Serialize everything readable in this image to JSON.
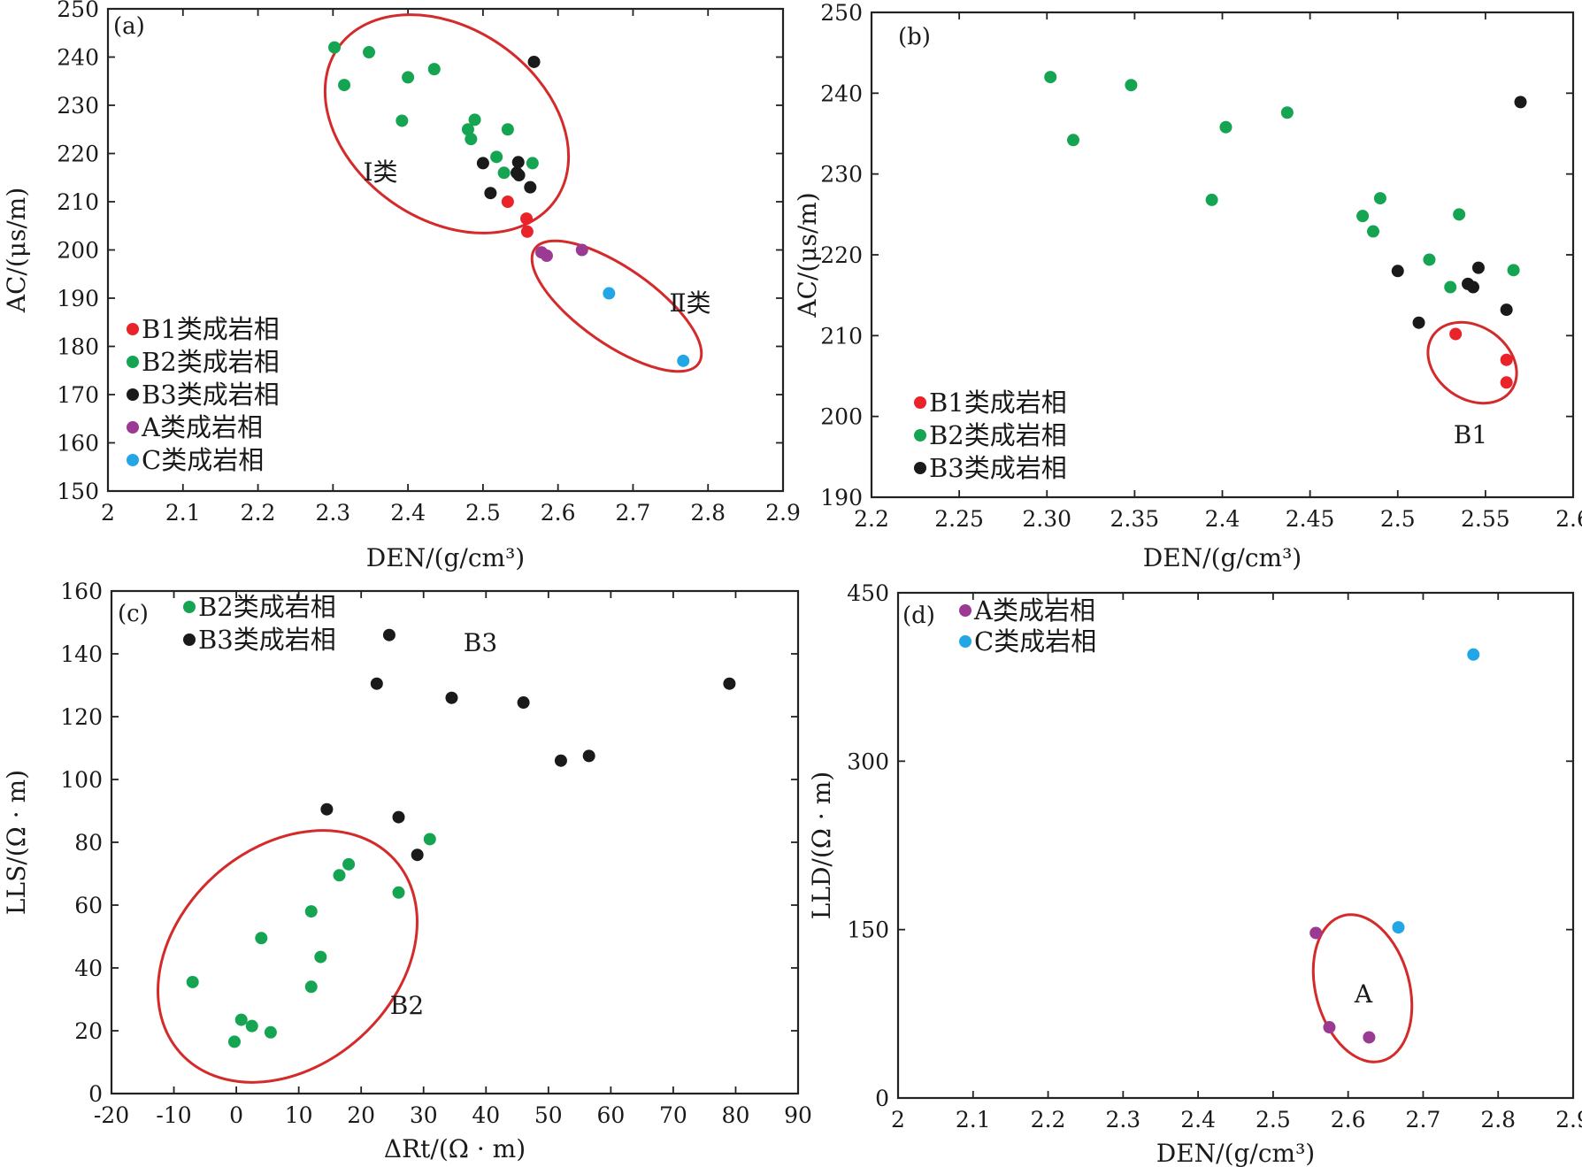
{
  "colors": {
    "B1": "#ea2229",
    "B2": "#15a552",
    "B3": "#1a1a1a",
    "A": "#9a3a93",
    "C": "#22a6e6",
    "ellipse": "#d42a2a"
  },
  "chart_data": [
    {
      "id": "a",
      "type": "scatter",
      "panel_label": "(a)",
      "xlabel": "DEN/(g/cm³)",
      "ylabel": "AC/(μs/m)",
      "xlim": [
        2,
        2.9
      ],
      "ylim": [
        150,
        250
      ],
      "xticks": [
        "2",
        "2.1",
        "2.2",
        "2.3",
        "2.4",
        "2.5",
        "2.6",
        "2.7",
        "2.8",
        "2.9"
      ],
      "yticks": [
        "150",
        "160",
        "170",
        "180",
        "190",
        "200",
        "210",
        "220",
        "230",
        "240",
        "250"
      ],
      "legend_position": "bottom-left",
      "series": [
        {
          "key": "B1",
          "name": "B1类成岩相",
          "points": [
            [
              2.533,
              210
            ],
            [
              2.558,
              206.5
            ],
            [
              2.559,
              203.8
            ]
          ]
        },
        {
          "key": "B2",
          "name": "B2类成岩相",
          "points": [
            [
              2.302,
              242
            ],
            [
              2.348,
              241
            ],
            [
              2.315,
              234.2
            ],
            [
              2.4,
              235.8
            ],
            [
              2.435,
              237.5
            ],
            [
              2.392,
              226.8
            ],
            [
              2.48,
              225
            ],
            [
              2.489,
              227
            ],
            [
              2.484,
              223
            ],
            [
              2.533,
              225
            ],
            [
              2.518,
              219.3
            ],
            [
              2.528,
              216
            ],
            [
              2.566,
              218
            ]
          ]
        },
        {
          "key": "B3",
          "name": "B3类成岩相",
          "points": [
            [
              2.568,
              239
            ],
            [
              2.5,
              218
            ],
            [
              2.547,
              218.2
            ],
            [
              2.545,
              216
            ],
            [
              2.548,
              215.5
            ],
            [
              2.51,
              211.8
            ],
            [
              2.563,
              213
            ]
          ]
        },
        {
          "key": "A",
          "name": "A类成岩相",
          "points": [
            [
              2.578,
              199.5
            ],
            [
              2.585,
              198.8
            ],
            [
              2.632,
              200
            ]
          ]
        },
        {
          "key": "C",
          "name": "C类成岩相",
          "points": [
            [
              2.668,
              191
            ],
            [
              2.767,
              177
            ]
          ]
        }
      ],
      "annotations": [
        "Ⅰ类",
        "Ⅱ类"
      ]
    },
    {
      "id": "b",
      "type": "scatter",
      "panel_label": "(b)",
      "xlabel": "DEN/(g/cm³)",
      "ylabel": "AC/(μs/m)",
      "xlim": [
        2.2,
        2.6
      ],
      "ylim": [
        190,
        250
      ],
      "xticks": [
        "2.2",
        "2.25",
        "2.30",
        "2.35",
        "2.4",
        "2.45",
        "2.5",
        "2.55",
        "2.6"
      ],
      "yticks": [
        "190",
        "200",
        "210",
        "220",
        "230",
        "240",
        "250"
      ],
      "legend_position": "bottom-left",
      "series": [
        {
          "key": "B1",
          "name": "B1类成岩相",
          "points": [
            [
              2.533,
              210.2
            ],
            [
              2.562,
              207
            ],
            [
              2.562,
              204.2
            ]
          ]
        },
        {
          "key": "B2",
          "name": "B2类成岩相",
          "points": [
            [
              2.302,
              242
            ],
            [
              2.348,
              241
            ],
            [
              2.315,
              234.2
            ],
            [
              2.402,
              235.8
            ],
            [
              2.437,
              237.6
            ],
            [
              2.394,
              226.8
            ],
            [
              2.48,
              224.8
            ],
            [
              2.49,
              227
            ],
            [
              2.486,
              222.9
            ],
            [
              2.535,
              225
            ],
            [
              2.518,
              219.4
            ],
            [
              2.53,
              216
            ],
            [
              2.566,
              218.1
            ]
          ]
        },
        {
          "key": "B3",
          "name": "B3类成岩相",
          "points": [
            [
              2.57,
              238.9
            ],
            [
              2.5,
              218
            ],
            [
              2.546,
              218.4
            ],
            [
              2.54,
              216.4
            ],
            [
              2.543,
              216
            ],
            [
              2.512,
              211.6
            ],
            [
              2.562,
              213.2
            ]
          ]
        }
      ],
      "annotations": [
        "B1"
      ]
    },
    {
      "id": "c",
      "type": "scatter",
      "panel_label": "(c)",
      "xlabel": "ΔRt/(Ω · m)",
      "ylabel": "LLS/(Ω · m)",
      "xlim": [
        -20,
        90
      ],
      "ylim": [
        0,
        160
      ],
      "xticks": [
        "-20",
        "-10",
        "0",
        "10",
        "20",
        "30",
        "40",
        "50",
        "60",
        "70",
        "80",
        "90"
      ],
      "yticks": [
        "0",
        "20",
        "40",
        "60",
        "80",
        "100",
        "120",
        "140",
        "160"
      ],
      "legend_position": "top-left",
      "series": [
        {
          "key": "B2",
          "name": "B2类成岩相",
          "points": [
            [
              -7,
              35.5
            ],
            [
              -0.3,
              16.5
            ],
            [
              0.8,
              23.5
            ],
            [
              2.5,
              21.5
            ],
            [
              5.5,
              19.5
            ],
            [
              4,
              49.5
            ],
            [
              12,
              58
            ],
            [
              12,
              34
            ],
            [
              13.5,
              43.5
            ],
            [
              16.5,
              69.5
            ],
            [
              18,
              73
            ],
            [
              26,
              64
            ],
            [
              31,
              81
            ]
          ]
        },
        {
          "key": "B3",
          "name": "B3类成岩相",
          "points": [
            [
              24.5,
              146
            ],
            [
              22.5,
              130.5
            ],
            [
              34.5,
              126
            ],
            [
              46,
              124.5
            ],
            [
              79,
              130.5
            ],
            [
              52,
              106
            ],
            [
              56.5,
              107.5
            ],
            [
              14.5,
              90.5
            ],
            [
              26,
              88
            ],
            [
              29,
              76
            ]
          ]
        }
      ],
      "annotations": [
        "B3",
        "B2"
      ]
    },
    {
      "id": "d",
      "type": "scatter",
      "panel_label": "(d)",
      "xlabel": "DEN/(g/cm³)",
      "ylabel": "LLD/(Ω · m)",
      "xlim": [
        2,
        2.9
      ],
      "ylim": [
        0,
        450
      ],
      "xticks": [
        "2",
        "2.1",
        "2.2",
        "2.3",
        "2.4",
        "2.5",
        "2.6",
        "2.7",
        "2.8",
        "2.9"
      ],
      "yticks": [
        "0",
        "150",
        "300",
        "450"
      ],
      "legend_position": "top-left",
      "series": [
        {
          "key": "A",
          "name": "A类成岩相",
          "points": [
            [
              2.557,
              147
            ],
            [
              2.575,
              63
            ],
            [
              2.628,
              54
            ]
          ]
        },
        {
          "key": "C",
          "name": "C类成岩相",
          "points": [
            [
              2.667,
              152
            ],
            [
              2.767,
              395
            ]
          ]
        }
      ],
      "annotations": [
        "A"
      ]
    }
  ]
}
